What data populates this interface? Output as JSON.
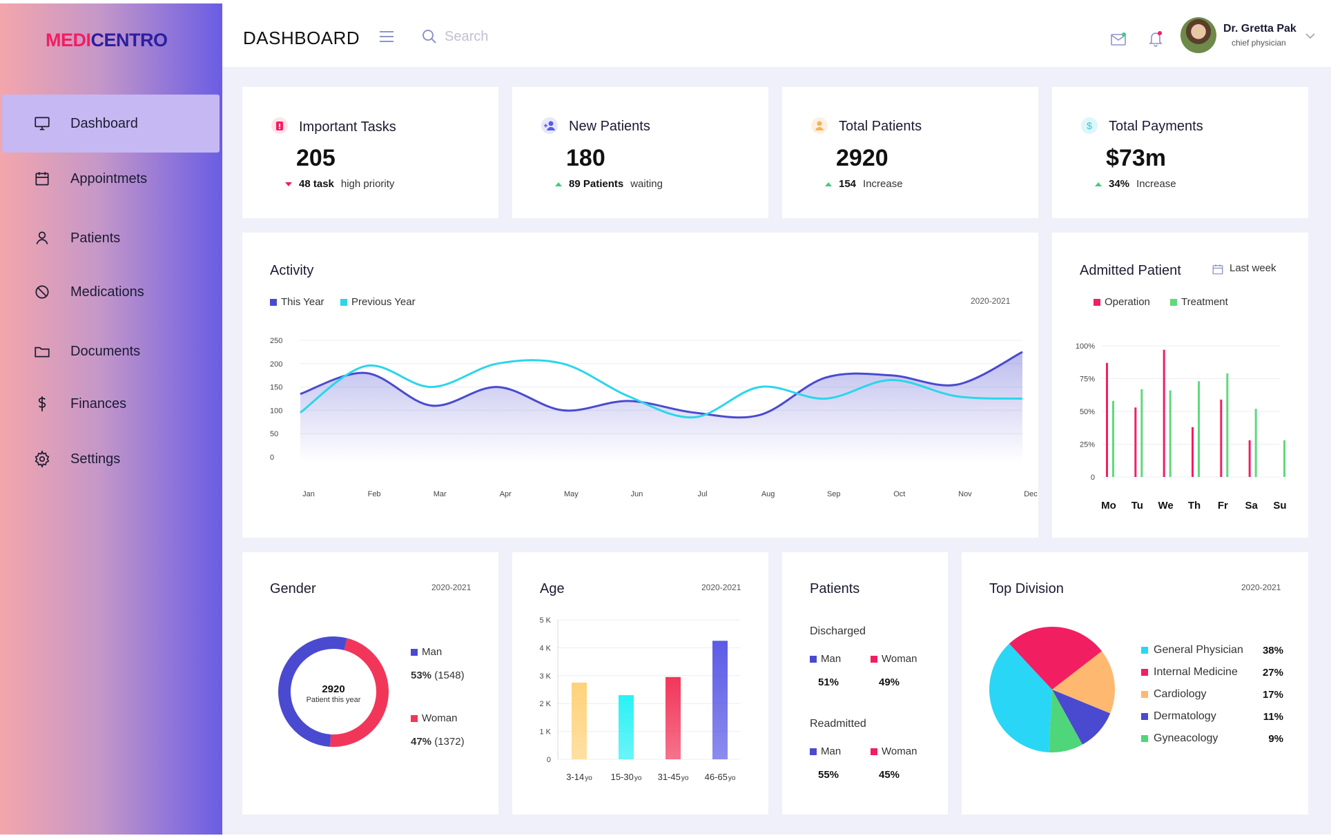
{
  "brand": {
    "part1": "MEDI",
    "part2": "CENTRO"
  },
  "sidebar": {
    "items": [
      {
        "label": "Dashboard",
        "icon": "monitor-icon",
        "active": true
      },
      {
        "label": "Appointmets",
        "icon": "calendar-icon"
      },
      {
        "label": "Patients",
        "icon": "user-icon"
      },
      {
        "label": "Medications",
        "icon": "pill-icon"
      },
      {
        "label": "Documents",
        "icon": "folder-icon"
      },
      {
        "label": "Finances",
        "icon": "dollar-icon"
      },
      {
        "label": "Settings",
        "icon": "gear-icon"
      }
    ]
  },
  "header": {
    "title": "DASHBOARD",
    "search_placeholder": "Search",
    "user_name": "Dr. Gretta Pak",
    "user_role": "chief physician"
  },
  "stats": [
    {
      "label": "Important Tasks",
      "value": "205",
      "sub_bold": "48 task",
      "sub_text": "high priority",
      "trend": "down",
      "icon": "alert-icon",
      "icon_color": "#f21e62"
    },
    {
      "label": "New Patients",
      "value": "180",
      "sub_bold": "89 Patients",
      "sub_text": "waiting",
      "trend": "up",
      "icon": "add-user-icon",
      "icon_color": "#5b5be6"
    },
    {
      "label": "Total Patients",
      "value": "2920",
      "sub_bold": "154",
      "sub_text": "Increase",
      "trend": "up",
      "icon": "person-icon",
      "icon_color": "#f7b35a"
    },
    {
      "label": "Total Payments",
      "value": "$73m",
      "sub_bold": "34%",
      "sub_text": "Increase",
      "trend": "up",
      "icon": "dollar-icon",
      "icon_color": "#2ec7e6"
    }
  ],
  "activity": {
    "title": "Activity",
    "year": "2020-2021",
    "legend": [
      "This Year",
      "Previous Year"
    ],
    "chart_data": {
      "type": "line",
      "x": [
        "Jan",
        "Feb",
        "Mar",
        "Apr",
        "May",
        "Jun",
        "Jul",
        "Aug",
        "Sep",
        "Oct",
        "Nov",
        "Dec"
      ],
      "y_ticks": [
        "0",
        "50",
        "100",
        "150",
        "200",
        "250"
      ],
      "ylim": [
        0,
        250
      ],
      "series": [
        {
          "name": "This Year",
          "color": "#4a4ad0",
          "values": [
            135,
            180,
            110,
            150,
            100,
            120,
            95,
            90,
            170,
            175,
            155,
            225
          ]
        },
        {
          "name": "Previous Year",
          "color": "#2ad6ea",
          "values": [
            95,
            195,
            150,
            200,
            200,
            130,
            85,
            150,
            125,
            165,
            130,
            125
          ]
        }
      ]
    }
  },
  "admitted": {
    "title": "Admitted Patient",
    "range_label": "Last week",
    "legend": [
      "Operation",
      "Treatment"
    ],
    "chart_data": {
      "type": "bar",
      "categories": [
        "Mo",
        "Tu",
        "We",
        "Th",
        "Fr",
        "Sa",
        "Su"
      ],
      "y_ticks": [
        "0",
        "25%",
        "50%",
        "75%",
        "100%"
      ],
      "ylim": [
        0,
        100
      ],
      "series": [
        {
          "name": "Operation",
          "color": "#f21e62",
          "values": [
            87,
            53,
            97,
            38,
            59,
            28,
            0
          ]
        },
        {
          "name": "Treatment",
          "color": "#5fd97b",
          "values": [
            58,
            67,
            66,
            73,
            79,
            52,
            28
          ]
        }
      ]
    }
  },
  "gender": {
    "title": "Gender",
    "year": "2020-2021",
    "center_value": "2920",
    "center_label": "Patient this year",
    "items": [
      {
        "label": "Man",
        "pct": "53%",
        "count": "(1548)",
        "color": "#4a4ad0"
      },
      {
        "label": "Woman",
        "pct": "47%",
        "count": "(1372)",
        "color": "#f2365a"
      }
    ],
    "chart_data": {
      "type": "pie",
      "categories": [
        "Man",
        "Woman"
      ],
      "values": [
        53,
        47
      ]
    }
  },
  "age": {
    "title": "Age",
    "year": "2020-2021",
    "chart_data": {
      "type": "bar",
      "categories": [
        "3-14",
        "15-30",
        "31-45",
        "46-65"
      ],
      "unit": "yo",
      "y_ticks": [
        "0",
        "1 K",
        "2 K",
        "3 K",
        "4 K",
        "5 K"
      ],
      "ylim": [
        0,
        5000
      ],
      "values": [
        2750,
        2300,
        2950,
        4250
      ],
      "colors": [
        "#ffd27a",
        "#2af1f5",
        "#f2365a",
        "#5b5be6"
      ]
    }
  },
  "patients_split": {
    "title": "Patients",
    "groups": [
      {
        "label": "Discharged",
        "man": "Man",
        "woman": "Woman",
        "man_pct": "51%",
        "woman_pct": "49%"
      },
      {
        "label": "Readmitted",
        "man": "Man",
        "woman": "Woman",
        "man_pct": "55%",
        "woman_pct": "45%"
      }
    ]
  },
  "division": {
    "title": "Top Division",
    "year": "2020-2021",
    "items": [
      {
        "label": "General Physician",
        "pct": "38%",
        "color": "#2ad6f5"
      },
      {
        "label": "Internal Medicine",
        "pct": "27%",
        "color": "#f21e62"
      },
      {
        "label": "Cardiology",
        "pct": "17%",
        "color": "#ffb870"
      },
      {
        "label": "Dermatology",
        "pct": "11%",
        "color": "#4a4ad0"
      },
      {
        "label": "Gyneacology",
        "pct": "9%",
        "color": "#4fd67a"
      }
    ],
    "chart_data": {
      "type": "pie",
      "categories": [
        "General Physician",
        "Internal Medicine",
        "Cardiology",
        "Dermatology",
        "Gyneacology"
      ],
      "values": [
        38,
        27,
        17,
        11,
        9
      ]
    }
  }
}
